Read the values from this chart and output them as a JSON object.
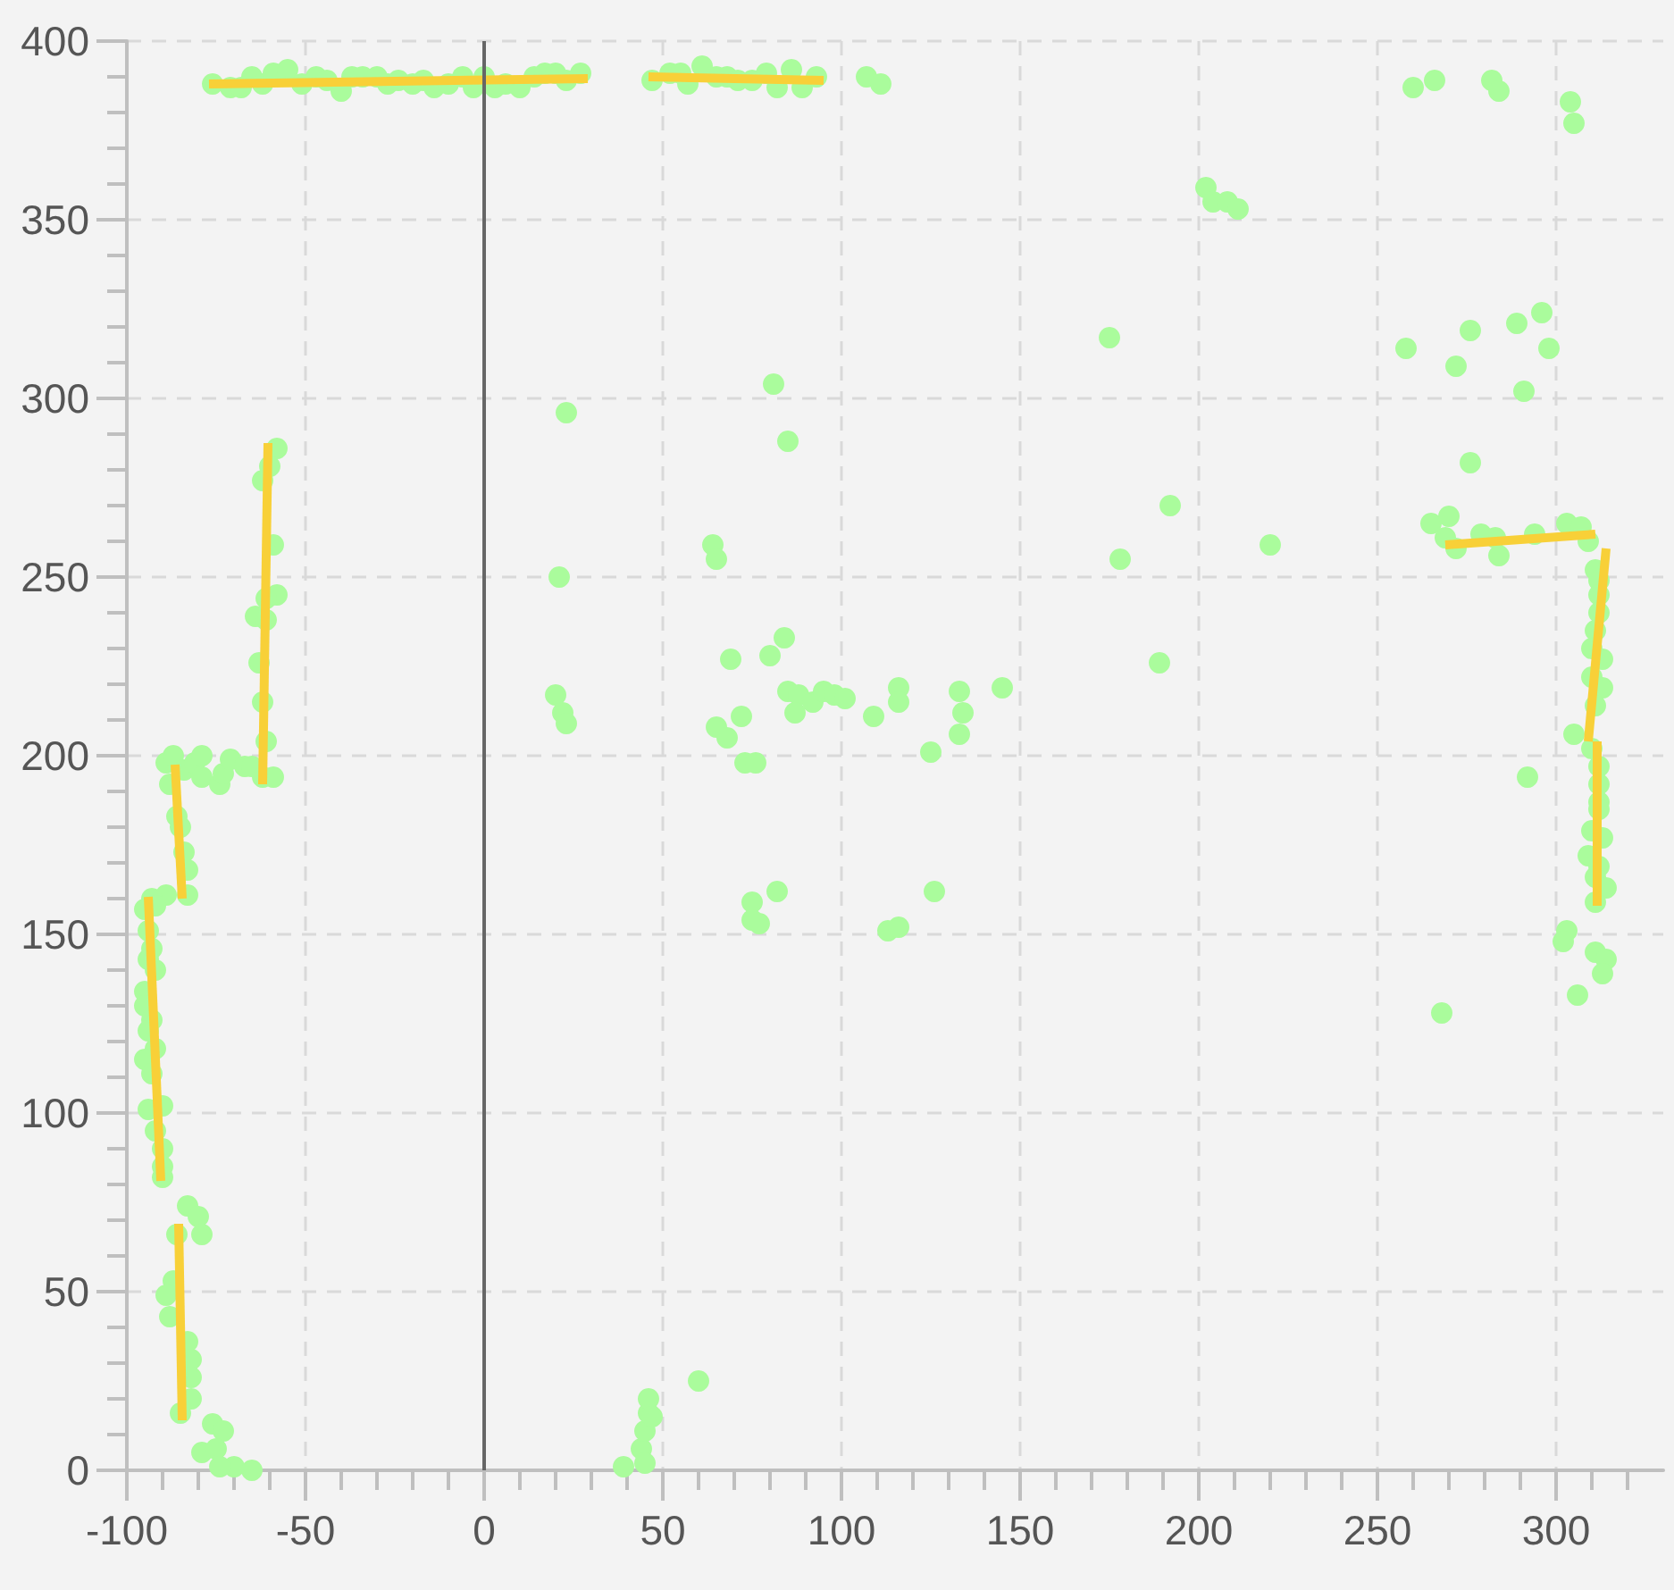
{
  "chart_data": {
    "type": "scatter",
    "xlim": [
      -100,
      330
    ],
    "ylim": [
      0,
      400
    ],
    "xticks": [
      -100,
      -50,
      0,
      50,
      100,
      150,
      200,
      250,
      300
    ],
    "yticks": [
      0,
      50,
      100,
      150,
      200,
      250,
      300,
      350,
      400
    ],
    "grid": true,
    "marker": "circle",
    "ref_lines": [
      {
        "axis": "x",
        "value": 0,
        "color": "#666666"
      }
    ],
    "series": [
      {
        "color": "#aafc9c",
        "x": [
          -76,
          -71,
          -68,
          -65,
          -62,
          -59,
          -55,
          -51,
          -47,
          -44,
          -40,
          -37,
          -34,
          -30,
          -27,
          -24,
          -20,
          -17,
          -14,
          -10,
          -6,
          -3,
          0,
          3,
          6,
          10,
          14,
          17,
          20,
          23,
          27,
          47,
          52,
          55,
          57,
          61,
          65,
          68,
          71,
          75,
          79,
          82,
          86,
          89,
          93,
          107,
          111,
          260,
          266,
          282,
          284,
          304,
          305,
          202,
          204,
          208,
          211,
          175,
          192,
          258,
          272,
          276,
          289,
          296,
          298,
          291,
          276,
          265,
          270,
          269,
          272,
          279,
          283,
          284,
          294,
          303,
          307,
          309,
          311,
          312,
          312,
          312,
          311,
          310,
          313,
          310,
          313,
          311,
          305,
          310,
          312,
          312,
          312,
          312,
          310,
          313,
          309,
          312,
          311,
          314,
          311,
          292,
          303,
          302,
          311,
          314,
          313,
          306,
          268,
          178,
          220,
          189,
          81,
          85,
          64,
          65,
          69,
          80,
          84,
          85,
          88,
          87,
          92,
          95,
          98,
          101,
          72,
          65,
          68,
          73,
          76,
          109,
          116,
          116,
          125,
          133,
          134,
          133,
          145,
          75,
          75,
          77,
          82,
          113,
          116,
          126,
          21,
          20,
          22,
          23,
          23,
          -58,
          -60,
          -62,
          -59,
          -58,
          -61,
          -64,
          -61,
          -63,
          -62,
          -61,
          -62,
          -59,
          -89,
          -87,
          -88,
          -84,
          -81,
          -79,
          -79,
          -74,
          -73,
          -71,
          -67,
          -65,
          -86,
          -85,
          -84,
          -83,
          -83,
          -89,
          -93,
          -95,
          -92,
          -94,
          -93,
          -94,
          -92,
          -95,
          -95,
          -93,
          -94,
          -92,
          -95,
          -93,
          -94,
          -90,
          -92,
          -90,
          -90,
          -90,
          -83,
          -80,
          -79,
          -86,
          -87,
          -89,
          -88,
          -83,
          -82,
          -82,
          -82,
          -85,
          -76,
          -73,
          -79,
          -75,
          -70,
          -65,
          -74,
          39,
          44,
          45,
          46,
          46,
          47,
          45,
          60
        ],
        "values": [
          388,
          387,
          387,
          390,
          388,
          391,
          392,
          388,
          390,
          389,
          386,
          390,
          390,
          390,
          388,
          389,
          388,
          389,
          387,
          388,
          390,
          387,
          390,
          387,
          388,
          387,
          390,
          391,
          391,
          389,
          391,
          389,
          391,
          391,
          388,
          393,
          390,
          390,
          389,
          389,
          391,
          387,
          392,
          387,
          390,
          390,
          388,
          387,
          389,
          389,
          386,
          383,
          377,
          359,
          355,
          355,
          353,
          317,
          270,
          314,
          309,
          319,
          321,
          324,
          314,
          302,
          282,
          265,
          267,
          261,
          258,
          262,
          261,
          256,
          262,
          265,
          264,
          260,
          252,
          249,
          245,
          240,
          235,
          230,
          227,
          222,
          219,
          214,
          206,
          202,
          197,
          192,
          187,
          185,
          179,
          177,
          172,
          169,
          166,
          163,
          159,
          194,
          151,
          148,
          145,
          143,
          139,
          133,
          128,
          255,
          259,
          226,
          304,
          288,
          259,
          255,
          227,
          228,
          233,
          218,
          217,
          212,
          215,
          218,
          217,
          216,
          211,
          208,
          205,
          198,
          198,
          211,
          219,
          215,
          201,
          218,
          212,
          206,
          219,
          159,
          154,
          153,
          162,
          151,
          152,
          162,
          250,
          217,
          212,
          209,
          296,
          286,
          281,
          277,
          259,
          245,
          244,
          239,
          238,
          226,
          215,
          204,
          194,
          194,
          198,
          200,
          192,
          196,
          198,
          200,
          194,
          192,
          195,
          199,
          197,
          197,
          183,
          180,
          173,
          168,
          161,
          161,
          160,
          157,
          158,
          151,
          146,
          143,
          140,
          134,
          130,
          126,
          123,
          118,
          115,
          111,
          101,
          102,
          95,
          90,
          85,
          82,
          74,
          71,
          66,
          66,
          53,
          49,
          43,
          36,
          31,
          26,
          20,
          16,
          13,
          11,
          5,
          6,
          1,
          0,
          1,
          1,
          6,
          11,
          16,
          20,
          15,
          2,
          25
        ]
      },
      {
        "type": "line",
        "color": "#f8d038",
        "marker": "none",
        "x": [
          -77,
          29
        ],
        "values": [
          388,
          389.5
        ]
      },
      {
        "type": "line",
        "color": "#f8d038",
        "marker": "none",
        "x": [
          46,
          95
        ],
        "values": [
          390,
          389
        ]
      },
      {
        "type": "line",
        "color": "#f8d038",
        "marker": "none",
        "x": [
          -60.5,
          -62
        ],
        "values": [
          287.5,
          192
        ]
      },
      {
        "type": "line",
        "color": "#f8d038",
        "marker": "none",
        "x": [
          -86.5,
          -84.5
        ],
        "values": [
          197.5,
          160
        ]
      },
      {
        "type": "line",
        "color": "#f8d038",
        "marker": "none",
        "x": [
          -94,
          -90.5
        ],
        "values": [
          160.5,
          81
        ]
      },
      {
        "type": "line",
        "color": "#f8d038",
        "marker": "none",
        "x": [
          -85.5,
          -84.5
        ],
        "values": [
          69,
          14
        ]
      },
      {
        "type": "line",
        "color": "#f8d038",
        "marker": "none",
        "x": [
          269,
          311
        ],
        "values": [
          259,
          262
        ]
      },
      {
        "type": "line",
        "color": "#f8d038",
        "marker": "none",
        "x": [
          314,
          309
        ],
        "values": [
          258,
          204
        ]
      },
      {
        "type": "line",
        "color": "#f8d038",
        "marker": "none",
        "x": [
          311.5,
          311.5
        ],
        "values": [
          204,
          158
        ]
      }
    ]
  }
}
